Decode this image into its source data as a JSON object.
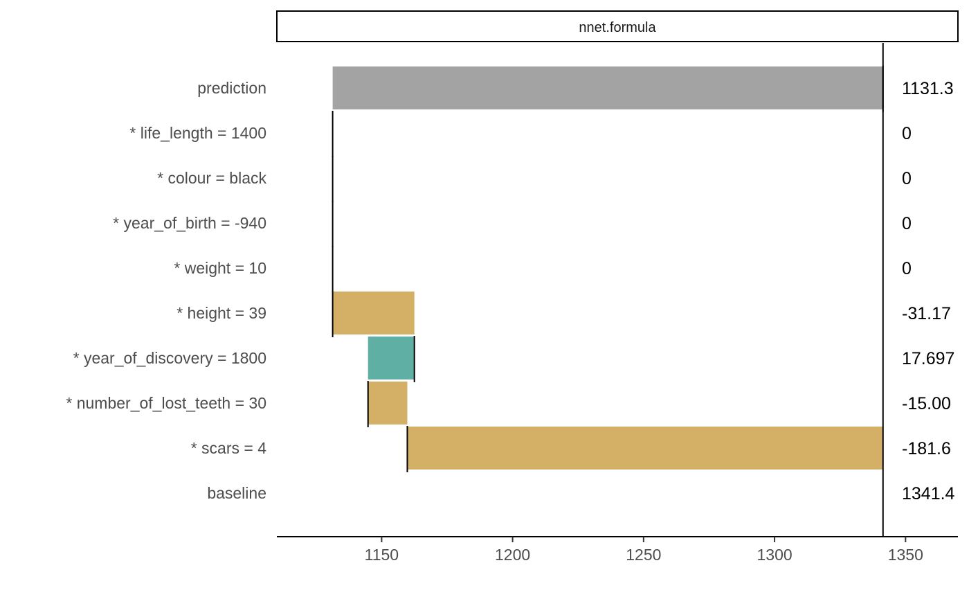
{
  "chart_data": {
    "type": "bar",
    "subtype": "waterfall / break-down",
    "panel_title": "nnet.formula",
    "categories": [
      "prediction",
      "* life_length = 1400",
      "* colour = black",
      "* year_of_birth = -940",
      "* weight = 10",
      "* height = 39",
      "* year_of_discovery = 1800",
      "* number_of_lost_teeth = 30",
      "* scars = 4",
      "baseline"
    ],
    "value_labels": [
      "1131.3",
      "0",
      "0",
      "0",
      "0",
      "-31.17",
      "17.697",
      "-15.00",
      "-181.6",
      "1341.4"
    ],
    "bars": [
      {
        "start": 1131.3,
        "end": 1341.4,
        "kind": "prediction"
      },
      {
        "start": 1131.3,
        "end": 1131.3,
        "kind": "zero"
      },
      {
        "start": 1131.3,
        "end": 1131.3,
        "kind": "zero"
      },
      {
        "start": 1131.3,
        "end": 1131.3,
        "kind": "zero"
      },
      {
        "start": 1131.3,
        "end": 1131.3,
        "kind": "zero"
      },
      {
        "start": 1162.5,
        "end": 1131.3,
        "kind": "negative"
      },
      {
        "start": 1144.8,
        "end": 1162.5,
        "kind": "positive"
      },
      {
        "start": 1159.8,
        "end": 1144.8,
        "kind": "negative"
      },
      {
        "start": 1341.4,
        "end": 1159.8,
        "kind": "negative"
      },
      {
        "start": 1341.4,
        "end": 1341.4,
        "kind": "baseline"
      }
    ],
    "intercept": 1341.4,
    "x_ticks": [
      1150,
      1200,
      1250,
      1300,
      1350
    ],
    "xlim": [
      1110,
      1370
    ],
    "xlabel": "",
    "ylabel": "",
    "grid": false,
    "colors": {
      "prediction": "#a3a3a3",
      "positive": "#5fafa5",
      "negative": "#d4af66",
      "connector": "#000000",
      "intercept_line": "#000000"
    }
  }
}
